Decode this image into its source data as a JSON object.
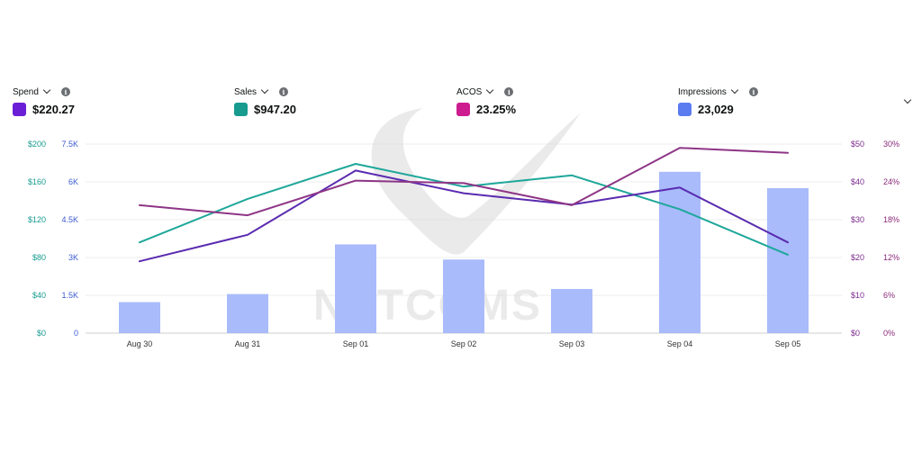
{
  "metrics": [
    {
      "label": "Spend",
      "value": "$220.27",
      "color": "#6a1fd6"
    },
    {
      "label": "Sales",
      "value": "$947.20",
      "color": "#179b8f"
    },
    {
      "label": "ACOS",
      "value": "23.25%",
      "color": "#cc1c8f"
    },
    {
      "label": "Impressions",
      "value": "23,029",
      "color": "#5b7cf0"
    }
  ],
  "watermark": "NETCOMS",
  "icons": {
    "info": "info-icon",
    "dropdown": "chevron-down-icon",
    "collapse": "chevron-down-icon"
  },
  "chart_data": {
    "type": "bar+line",
    "categories": [
      "Aug 30",
      "Aug 31",
      "Sep 01",
      "Sep 02",
      "Sep 03",
      "Sep 04",
      "Sep 05"
    ],
    "axes": {
      "left_outer": {
        "ticks": [
          "$0",
          "$40",
          "$80",
          "$120",
          "$160",
          "$200"
        ],
        "range": [
          0,
          200
        ],
        "color": "#179b8f"
      },
      "left_inner": {
        "ticks": [
          "0",
          "1.5K",
          "3K",
          "4.5K",
          "6K",
          "7.5K"
        ],
        "range": [
          0,
          7500
        ],
        "color": "#3d5bd1"
      },
      "right_inner": {
        "ticks": [
          "$0",
          "$10",
          "$20",
          "$30",
          "$40",
          "$50"
        ],
        "range": [
          0,
          50
        ],
        "color": "#7a2a8c"
      },
      "right_outer": {
        "ticks": [
          "0%",
          "6%",
          "12%",
          "18%",
          "24%",
          "30%"
        ],
        "range": [
          0,
          30
        ],
        "color": "#8a2a7a"
      }
    },
    "grid": true,
    "bars": {
      "name": "Impressions",
      "axis": "left_inner",
      "color": "#a9bbfb",
      "values": [
        1230,
        1550,
        3520,
        2920,
        1750,
        6400,
        5750
      ]
    },
    "lines": [
      {
        "name": "Sales",
        "axis": "left_outer",
        "color": "#1ea79a",
        "values": [
          96,
          142,
          179,
          155,
          167,
          131,
          83
        ]
      },
      {
        "name": "Spend",
        "axis": "right_inner",
        "color": "#5a2bb0",
        "values": [
          19,
          26,
          43,
          37,
          34,
          38.5,
          24
        ]
      },
      {
        "name": "ACOS",
        "axis": "right_outer",
        "color": "#8e3586",
        "values": [
          20.3,
          18.7,
          24.2,
          23.8,
          20.3,
          29.4,
          28.6
        ]
      }
    ]
  }
}
